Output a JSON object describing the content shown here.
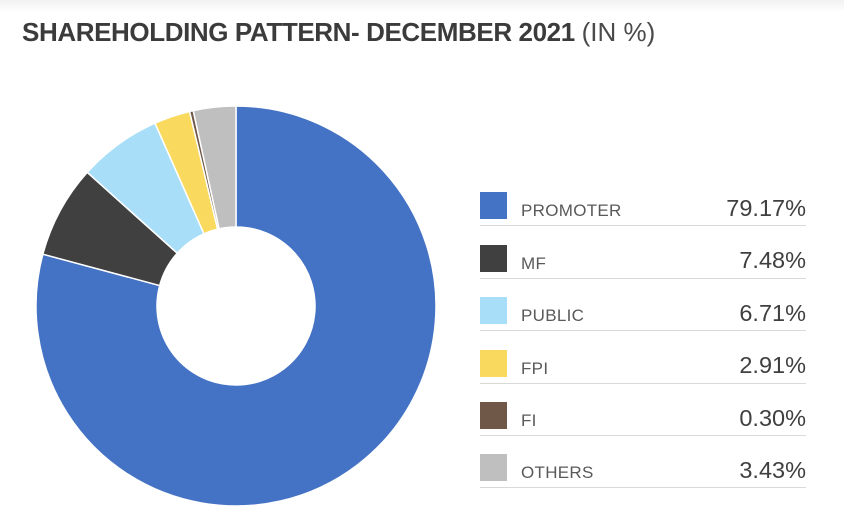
{
  "title": {
    "main": "SHAREHOLDING PATTERN- DECEMBER 2021",
    "suffix": "(IN %)"
  },
  "legend": {
    "items": [
      {
        "label": "PROMOTER",
        "value": "79.17%",
        "color": "#4472C4"
      },
      {
        "label": "MF",
        "value": "7.48%",
        "color": "#404040"
      },
      {
        "label": "PUBLIC",
        "value": "6.71%",
        "color": "#A9DEF9"
      },
      {
        "label": "FPI",
        "value": "2.91%",
        "color": "#FAD95F"
      },
      {
        "label": "FI",
        "value": "0.30%",
        "color": "#6F5848"
      },
      {
        "label": "OTHERS",
        "value": "3.43%",
        "color": "#BFBFBF"
      }
    ]
  },
  "chart_data": {
    "type": "pie",
    "title": "SHAREHOLDING PATTERN- DECEMBER 2021 (IN %)",
    "categories": [
      "PROMOTER",
      "MF",
      "PUBLIC",
      "FPI",
      "FI",
      "OTHERS"
    ],
    "values": [
      79.17,
      7.48,
      6.71,
      2.91,
      0.3,
      3.43
    ],
    "colors": [
      "#4472C4",
      "#404040",
      "#A9DEF9",
      "#FAD95F",
      "#6F5848",
      "#BFBFBF"
    ],
    "donut_hole_ratio": 0.395,
    "start_angle_deg": 0,
    "direction": "clockwise",
    "legend_position": "right",
    "slice_border_color": "#FFFFFF"
  },
  "styles": {
    "separator_color": "#D9D9D9",
    "label_color": "#595959",
    "value_color": "#3F3F3F",
    "title_color": "#3B3B3B",
    "background": "#FFFFFF"
  }
}
